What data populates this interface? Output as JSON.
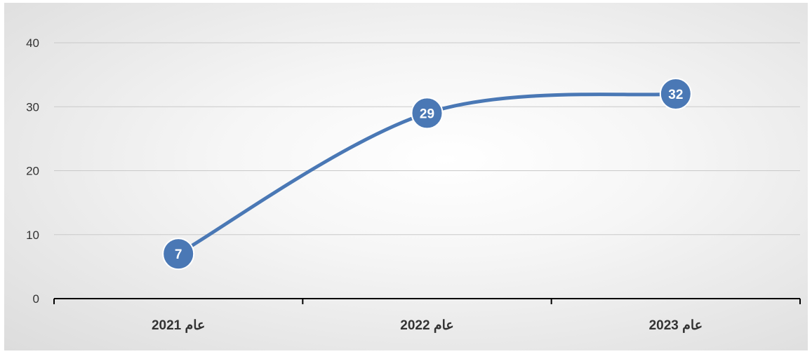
{
  "chart_data": {
    "type": "line",
    "categories": [
      "عام 2021",
      "عام 2022",
      "عام 2023"
    ],
    "values": [
      7,
      29,
      32
    ],
    "data_labels": [
      "7",
      "29",
      "32"
    ],
    "yticks": [
      "0",
      "10",
      "20",
      "30",
      "40"
    ],
    "ylim": [
      0,
      40
    ],
    "grid": true,
    "smooth": true,
    "legend": "none",
    "colors": {
      "line": "#4a78b5",
      "grid": "#c9c9c9",
      "axis": "#000000"
    }
  }
}
